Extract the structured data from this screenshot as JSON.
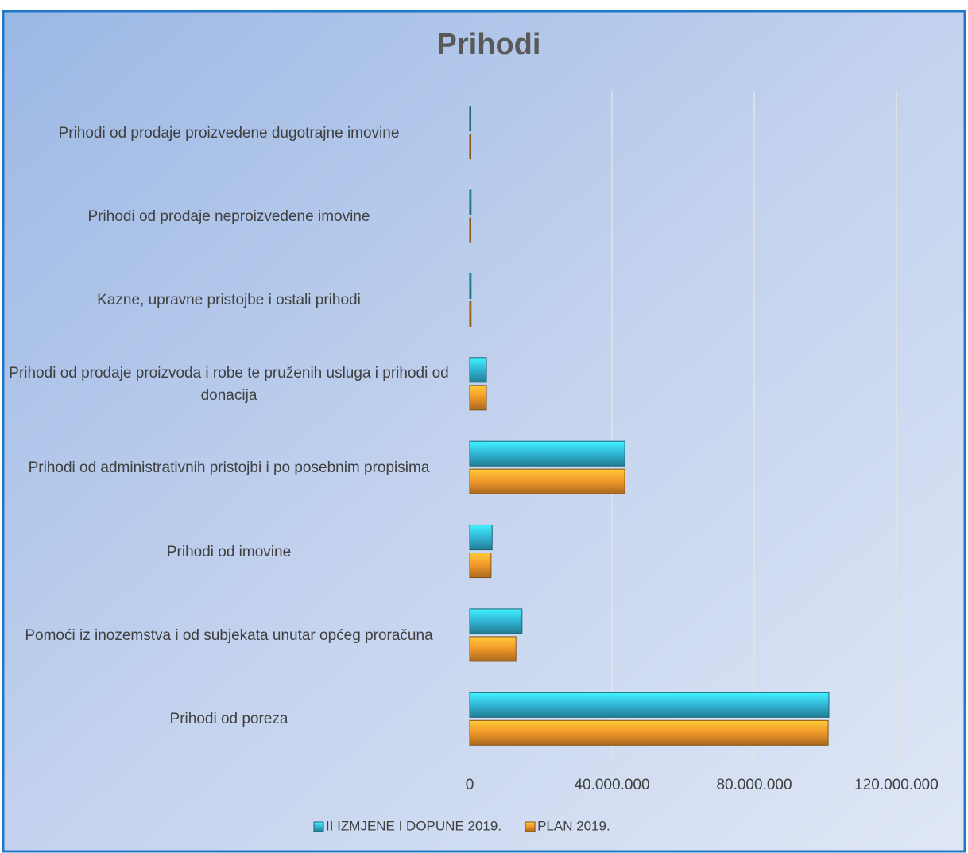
{
  "chart_data": {
    "type": "bar",
    "orientation": "horizontal",
    "title": "Prihodi",
    "categories": [
      "Prihodi od poreza",
      "Pomoći iz inozemstva i od subjekata unutar općeg proračuna",
      "Prihodi od imovine",
      "Prihodi od administrativnih pristojbi i po posebnim propisima",
      "Prihodi od prodaje proizvoda i robe te pruženih usluga i prihodi od donacija",
      "Kazne, upravne pristojbe i ostali prihodi",
      "Prihodi od prodaje neproizvedene imovine",
      "Prihodi od prodaje proizvedene dugotrajne imovine"
    ],
    "series": [
      {
        "name": "II IZMJENE I DOPUNE 2019.",
        "color": "#31b4d4",
        "values": [
          101000000,
          14700000,
          6300000,
          43600000,
          4700000,
          400000,
          400000,
          100000
        ]
      },
      {
        "name": "PLAN 2019.",
        "color": "#f0962a",
        "values": [
          100800000,
          13000000,
          6000000,
          43600000,
          4700000,
          400000,
          300000,
          100000
        ]
      }
    ],
    "xlim": [
      0,
      120000000
    ],
    "xticks": [
      0,
      {
        "value": 40000000,
        "label": "40.000.000"
      },
      {
        "value": 80000000,
        "label": "80.000.000"
      },
      {
        "value": 120000000,
        "label": "120.000.000"
      }
    ],
    "grid": true,
    "legend": "bottom"
  }
}
